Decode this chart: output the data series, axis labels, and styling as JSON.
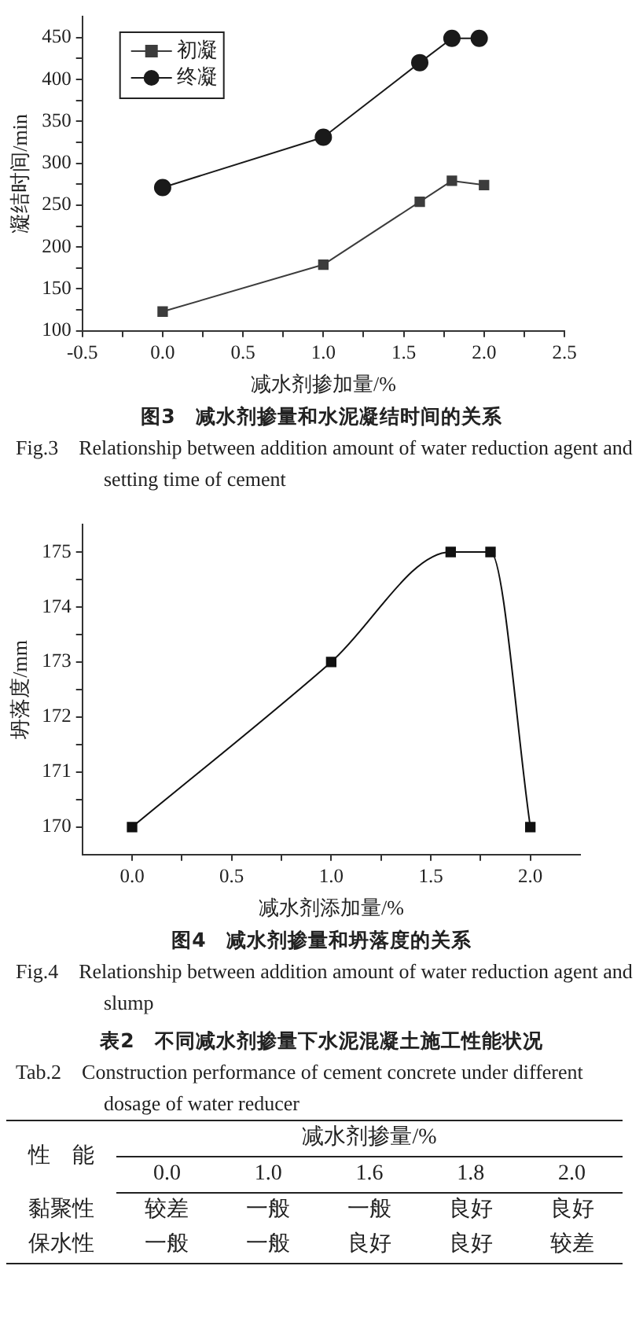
{
  "chart_data": [
    {
      "type": "line",
      "title": "图3　减水剂掺量和水泥凝结时间的关系",
      "subtitle": "Fig.3　Relationship between addition amount of water reduction agent and setting time of cement",
      "xlabel": "减水剂掺加量/%",
      "ylabel": "凝结时间/min",
      "legend": "top left",
      "grid": false,
      "xlim": [
        -0.5,
        2.5
      ],
      "xticks": [
        -0.5,
        {
          "value": -0.25,
          "label": null
        },
        {
          "value": 0,
          "label": "0.0"
        },
        {
          "value": 0.25,
          "label": null
        },
        0.5,
        {
          "value": 0.75,
          "label": null
        },
        {
          "value": 1,
          "label": "1.0"
        },
        {
          "value": 1.25,
          "label": null
        },
        1.5,
        {
          "value": 1.75,
          "label": null
        },
        {
          "value": 2,
          "label": "2.0"
        },
        {
          "value": 2.25,
          "label": null
        },
        2.5
      ],
      "ylim": [
        100,
        475
      ],
      "yticks": [
        100,
        {
          "value": 125,
          "label": null
        },
        150,
        {
          "value": 175,
          "label": null
        },
        200,
        {
          "value": 225,
          "label": null
        },
        250,
        {
          "value": 275,
          "label": null
        },
        300,
        {
          "value": 325,
          "label": null
        },
        350,
        {
          "value": 375,
          "label": null
        },
        400,
        {
          "value": 425,
          "label": null
        },
        450
      ],
      "series": [
        {
          "name": "初凝",
          "color": "#3c3c3c",
          "marker": "square",
          "x": [
            0,
            1,
            1.6,
            1.8,
            2
          ],
          "values": [
            123,
            179,
            254,
            279,
            274
          ]
        },
        {
          "name": "终凝",
          "color": "#1a1a1a",
          "marker": "circle",
          "x": [
            0,
            1,
            1.6,
            1.8,
            1.97
          ],
          "values": [
            271,
            331,
            420,
            449,
            449
          ]
        }
      ]
    },
    {
      "type": "line",
      "title": "图4　减水剂掺量和坍落度的关系",
      "subtitle": "Fig.4　Relationship between addition amount of water reduction agent and slump",
      "xlabel": "减水剂添加量/%",
      "ylabel": "坍落度/mm",
      "grid": false,
      "marker": "square",
      "xlim": [
        -0.25,
        2.25
      ],
      "xticks": [
        {
          "value": 0,
          "label": "0.0"
        },
        {
          "value": 0.25,
          "label": null
        },
        0.5,
        {
          "value": 0.75,
          "label": null
        },
        {
          "value": 1,
          "label": "1.0"
        },
        {
          "value": 1.25,
          "label": null
        },
        1.5,
        {
          "value": 1.75,
          "label": null
        },
        {
          "value": 2,
          "label": "2.0"
        }
      ],
      "ylim": [
        169.5,
        175.5
      ],
      "yticks": [
        170,
        {
          "value": 170.5,
          "label": null
        },
        171,
        {
          "value": 171.5,
          "label": null
        },
        172,
        {
          "value": 172.5,
          "label": null
        },
        173,
        {
          "value": 173.5,
          "label": null
        },
        174,
        {
          "value": 174.5,
          "label": null
        },
        175
      ],
      "series": [
        {
          "color": "#111111",
          "x": [
            0,
            1,
            1.6,
            1.8,
            2
          ],
          "values": [
            170,
            173,
            175,
            175,
            170
          ]
        }
      ]
    },
    {
      "type": "other",
      "title": "表2　不同减水剂掺量下水泥混凝土施工性能状况",
      "subtitle": "Tab.2　Construction performance of cement concrete under different dosage of water reducer",
      "xlabel": "减水剂掺量/%",
      "ylabel": "性　能",
      "categories": [
        "0.0",
        "1.0",
        "1.6",
        "1.8",
        "2.0"
      ],
      "y_categories": [
        "黏聚性",
        "保水性"
      ],
      "cell_labels": [
        [
          "较差",
          "一般",
          "一般",
          "良好",
          "良好"
        ],
        [
          "一般",
          "一般",
          "良好",
          "良好",
          "较差"
        ]
      ]
    }
  ]
}
